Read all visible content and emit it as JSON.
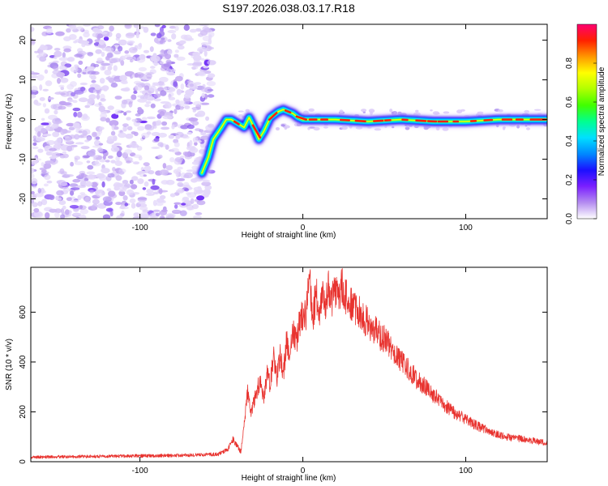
{
  "figure_title": "S197.2026.038.03.17.R18",
  "chart_data": [
    {
      "type": "heatmap",
      "xlabel": "Height of straight line (km)",
      "ylabel": "Frequency (Hz)",
      "xlim": [
        -167,
        150
      ],
      "ylim": [
        -25,
        24
      ],
      "xticks": [
        -100,
        0,
        100
      ],
      "yticks": [
        -20,
        -10,
        0,
        10,
        20
      ],
      "noise_region_x": [
        -167,
        -60
      ],
      "ridge": {
        "x": [
          -62,
          -58,
          -55,
          -50,
          -47,
          -44,
          -40,
          -36,
          -33,
          -30,
          -27,
          -24,
          -20,
          -15,
          -12,
          -9,
          -6,
          -3,
          0,
          20,
          40,
          60,
          80,
          100,
          120,
          140,
          150
        ],
        "freq": [
          -13.5,
          -9.5,
          -5,
          -2,
          0,
          0,
          -1,
          -2,
          0.5,
          -2,
          -5,
          -3,
          0.5,
          2,
          2.5,
          2,
          1.5,
          0.5,
          0,
          0,
          -0.5,
          0,
          -0.5,
          -0.5,
          0,
          0,
          0
        ]
      },
      "colorbar": {
        "label": "Normalized spectral amplitude",
        "range": [
          0.0,
          1.0
        ],
        "ticks": [
          "0.0",
          "0.2",
          "0.4",
          "0.6",
          "0.8"
        ],
        "colors": [
          "#ffffff",
          "#b48cf0",
          "#7a1fff",
          "#1b10ff",
          "#0088ff",
          "#00e0ff",
          "#00ff90",
          "#40ff00",
          "#b0ff00",
          "#ffff00",
          "#ff9800",
          "#ff2000",
          "#ff0070"
        ]
      }
    },
    {
      "type": "line",
      "xlabel": "Height of straight line (km)",
      "ylabel": "SNR (10 * v/v)",
      "xlim": [
        -167,
        150
      ],
      "ylim": [
        0,
        780
      ],
      "xticks": [
        -100,
        0,
        100
      ],
      "yticks": [
        0,
        200,
        400,
        600
      ],
      "color": "#e8332f",
      "series": [
        {
          "x": [
            -167,
            -120,
            -80,
            -60,
            -52,
            -46,
            -43,
            -40,
            -38,
            -36,
            -34,
            -32,
            -30,
            -28,
            -26,
            -24,
            -22,
            -20,
            -18,
            -16,
            -14,
            -12,
            -10,
            -8,
            -6,
            -4,
            -2,
            0,
            2,
            4,
            6,
            8,
            10,
            12,
            14,
            16,
            18,
            20,
            22,
            24,
            26,
            28,
            30,
            32,
            34,
            36,
            38,
            40,
            45,
            50,
            55,
            60,
            65,
            70,
            75,
            80,
            85,
            90,
            95,
            100,
            105,
            110,
            115,
            120,
            125,
            130,
            135,
            140,
            145,
            150
          ],
          "y": [
            18,
            22,
            25,
            28,
            30,
            50,
            90,
            60,
            40,
            150,
            280,
            200,
            240,
            290,
            330,
            250,
            360,
            300,
            450,
            330,
            430,
            350,
            480,
            420,
            520,
            480,
            560,
            600,
            580,
            740,
            560,
            680,
            600,
            660,
            620,
            700,
            640,
            690,
            660,
            710,
            670,
            650,
            640,
            620,
            600,
            590,
            570,
            560,
            520,
            490,
            450,
            410,
            370,
            330,
            300,
            270,
            240,
            210,
            190,
            170,
            150,
            135,
            120,
            110,
            100,
            95,
            90,
            85,
            80,
            75
          ]
        }
      ]
    }
  ]
}
